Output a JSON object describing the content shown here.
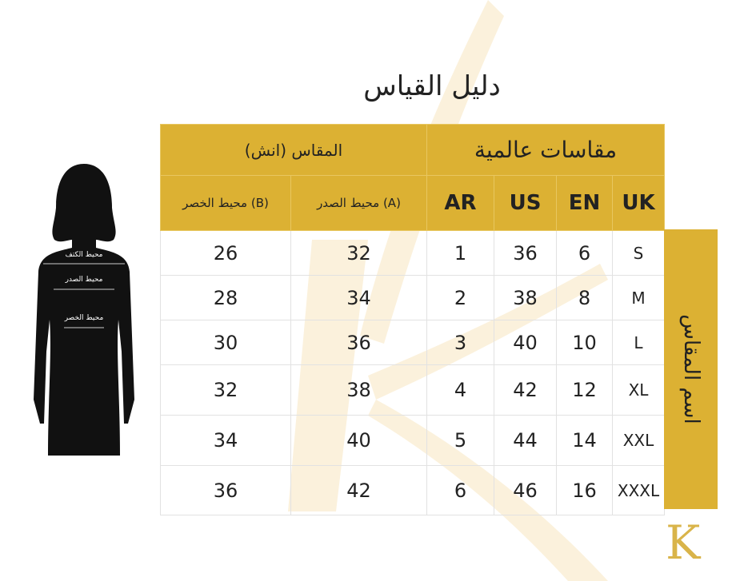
{
  "title": "دليل القياس",
  "header": {
    "international": "مقاسات عالمية",
    "inches": "المقاس (انش)",
    "columns": [
      "UK",
      "EN",
      "US",
      "AR",
      "محيط الصدر (A)",
      "محيط الخصر (B)"
    ]
  },
  "side_label": "اسم المقاس",
  "rows": [
    {
      "uk": "S",
      "en": "6",
      "us": "36",
      "ar": "1",
      "a": "32",
      "b": "26"
    },
    {
      "uk": "M",
      "en": "8",
      "us": "38",
      "ar": "2",
      "a": "34",
      "b": "28"
    },
    {
      "uk": "L",
      "en": "10",
      "us": "40",
      "ar": "3",
      "a": "36",
      "b": "30"
    },
    {
      "uk": "XL",
      "en": "12",
      "us": "42",
      "ar": "4",
      "a": "38",
      "b": "32"
    },
    {
      "uk": "XXL",
      "en": "14",
      "us": "44",
      "ar": "5",
      "a": "40",
      "b": "34"
    },
    {
      "uk": "XXXL",
      "en": "16",
      "us": "46",
      "ar": "6",
      "a": "42",
      "b": "36"
    }
  ],
  "figure": {
    "shoulder": "محيط الكتف",
    "chest": "محيط الصدر",
    "waist": "محيط الخصر"
  },
  "logo": "K",
  "colors": {
    "gold": "#dcb133",
    "text": "#222222"
  }
}
